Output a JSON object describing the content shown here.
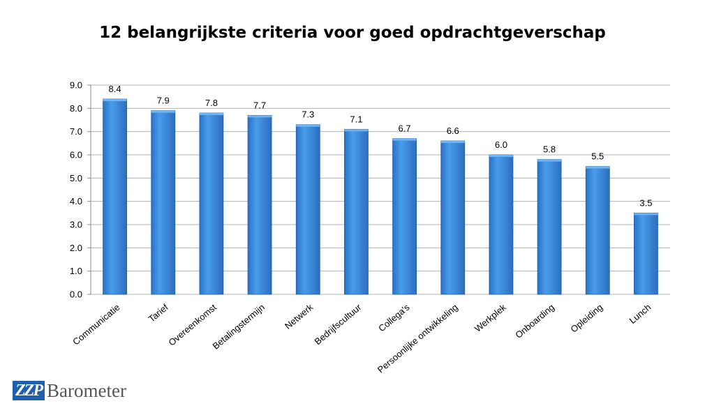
{
  "chart_data": {
    "type": "bar",
    "title": "12 belangrijkste criteria voor goed opdrachtgeverschap",
    "xlabel": "",
    "ylabel": "",
    "categories": [
      "Communicatie",
      "Tarief",
      "Overeenkomst",
      "Betalingstermijn",
      "Netwerk",
      "Bedrijfscultuur",
      "Collega's",
      "Persoonlijke ontwikkeling",
      "Werkplek",
      "Onboarding",
      "Opleiding",
      "Lunch"
    ],
    "values": [
      8.4,
      7.9,
      7.8,
      7.7,
      7.3,
      7.1,
      6.7,
      6.6,
      6.0,
      5.8,
      5.5,
      3.5
    ],
    "data_labels": [
      "8.4",
      "7.9",
      "7.8",
      "7.7",
      "7.3",
      "7.1",
      "6.7",
      "6.6",
      "6.0",
      "5.8",
      "5.5",
      "3.5"
    ],
    "ylim": [
      0,
      9
    ],
    "y_ticks": [
      "0.0",
      "1.0",
      "2.0",
      "3.0",
      "4.0",
      "5.0",
      "6.0",
      "7.0",
      "8.0",
      "9.0"
    ],
    "grid": true,
    "legend": "none",
    "bar_color": "#3a8ee0",
    "bar_color_dark": "#1d5da8",
    "grid_color": "#b3b3b3"
  },
  "logo": {
    "mark": "ZZP",
    "word": "Barometer",
    "color": "#1f5fae"
  }
}
